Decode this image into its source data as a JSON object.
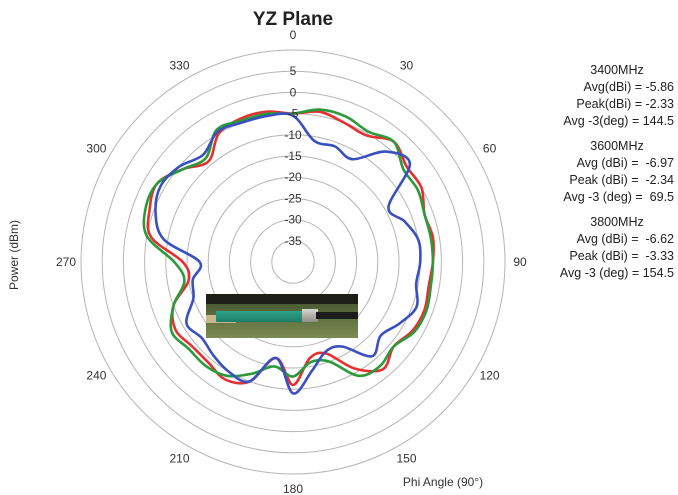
{
  "chart_data": {
    "type": "polar-line",
    "title": "YZ Plane",
    "radial_axis_label": "Power (dBm)",
    "angular_axis_label": "Phi Angle (90°)",
    "radial_range": [
      -40,
      10
    ],
    "radial_ticks": [
      5,
      0,
      -5,
      -10,
      -15,
      -20,
      -25,
      -30,
      -35
    ],
    "radial_tick_labels": [
      "5",
      "0",
      "-5",
      "-10",
      "-15",
      "-20",
      "-25",
      "-30",
      "-35"
    ],
    "angle_tick_labels": [
      "0",
      "30",
      "60",
      "90",
      "120",
      "150",
      "180",
      "210",
      "240",
      "270",
      "300",
      "330"
    ],
    "angle_ticks": [
      0,
      30,
      60,
      90,
      120,
      150,
      180,
      210,
      240,
      270,
      300,
      330
    ],
    "grid": true,
    "angles": [
      0,
      10,
      20,
      30,
      40,
      50,
      60,
      70,
      80,
      90,
      100,
      110,
      120,
      130,
      140,
      150,
      160,
      170,
      180,
      190,
      200,
      210,
      220,
      230,
      240,
      250,
      260,
      270,
      280,
      290,
      300,
      310,
      320,
      330,
      340,
      350
    ],
    "series": [
      {
        "color": "#e53030",
        "values": [
          -5,
          -4,
          -5,
          -5.5,
          -3,
          -5,
          -5,
          -7,
          -6.5,
          -7,
          -7.5,
          -7,
          -7.5,
          -9,
          -7,
          -11,
          -17,
          -17,
          -11,
          -17,
          -10,
          -8,
          -9,
          -9,
          -8,
          -10,
          -15,
          -14,
          -6,
          -4,
          -3,
          -6,
          -9,
          -5,
          -4,
          -4
        ]
      },
      {
        "color": "#2a9a3a",
        "values": [
          -5,
          -3.5,
          -3.5,
          -4.5,
          -3,
          -6,
          -6,
          -7,
          -7,
          -7,
          -7,
          -6.5,
          -7,
          -9,
          -8,
          -9,
          -15,
          -16,
          -13,
          -15,
          -12,
          -9,
          -8,
          -8,
          -7,
          -10,
          -14,
          -12,
          -5,
          -3,
          -3,
          -6,
          -8,
          -4,
          -4.5,
          -4.5
        ]
      },
      {
        "color": "#3a4fc0",
        "values": [
          -5.5,
          -11,
          -11,
          -12,
          -6,
          -4,
          -14,
          -12,
          -10,
          -10,
          -10.5,
          -9,
          -11,
          -13,
          -11,
          -17,
          -17.5,
          -14,
          -9,
          -17,
          -10,
          -10,
          -11,
          -12,
          -11,
          -15,
          -16,
          -18,
          -9,
          -5.5,
          -4,
          -5,
          -7,
          -4.5,
          -5,
          -5
        ]
      }
    ]
  },
  "stats": [
    {
      "freq": "3400MHz",
      "rows": [
        "Avg(dBi) = -5.86",
        "Peak(dBi) = -2.33",
        "Avg -3(deg) = 144.5"
      ]
    },
    {
      "freq": "3600MHz",
      "rows": [
        "Avg (dBi) =  -6.97",
        "Peak (dBi) =  -2.34",
        "Avg -3 (deg) =  69.5"
      ]
    },
    {
      "freq": "3800MHz",
      "rows": [
        "Avg (dBi) =  -6.62",
        "Peak (dBi) =  -3.33",
        "Avg -3 (deg) = 154.5"
      ]
    }
  ]
}
